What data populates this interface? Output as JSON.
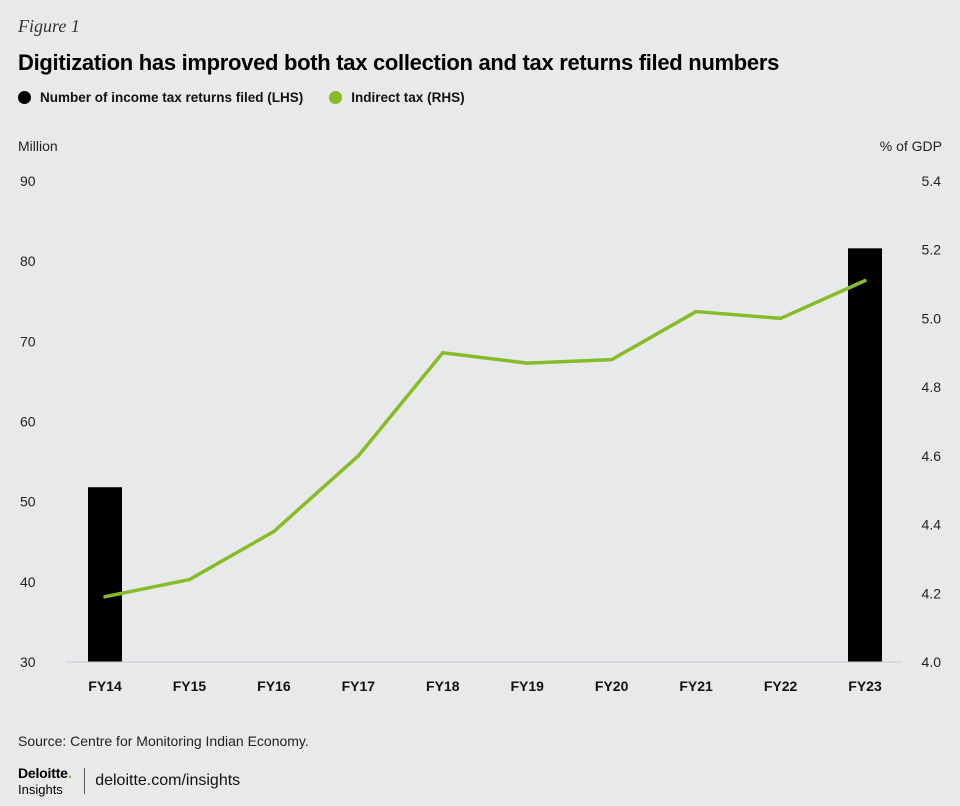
{
  "figure_label": "Figure 1",
  "title": "Digitization has improved both tax collection and tax returns filed numbers",
  "legend": [
    {
      "label": "Number of income tax returns filed (LHS)",
      "color": "#000000",
      "marker": "circle"
    },
    {
      "label": "Indirect tax (RHS)",
      "color": "#86bc25",
      "marker": "circle"
    }
  ],
  "axis_units": {
    "left": "Million",
    "right": "% of GDP"
  },
  "chart_data": {
    "type": "bar+line",
    "categories": [
      "FY14",
      "FY15",
      "FY16",
      "FY17",
      "FY18",
      "FY19",
      "FY20",
      "FY21",
      "FY22",
      "FY23"
    ],
    "series": [
      {
        "name": "Number of income tax returns filed (LHS)",
        "type": "bar",
        "axis": "left",
        "color": "#000000",
        "values": [
          51.8,
          null,
          null,
          null,
          null,
          null,
          null,
          null,
          null,
          81.6
        ]
      },
      {
        "name": "Indirect tax (RHS)",
        "type": "line",
        "axis": "right",
        "color": "#86bc25",
        "values": [
          4.19,
          4.24,
          4.38,
          4.6,
          4.9,
          4.87,
          4.88,
          5.02,
          5.0,
          5.11
        ]
      }
    ],
    "y_left": {
      "label": "Million",
      "min": 30,
      "max": 90,
      "ticks": [
        "30",
        "40",
        "50",
        "60",
        "70",
        "80",
        "90"
      ]
    },
    "y_right": {
      "label": "% of GDP",
      "min": 4.0,
      "max": 5.4,
      "ticks": [
        "4.0",
        "4.2",
        "4.4",
        "4.6",
        "4.8",
        "5.0",
        "5.2",
        "5.4"
      ]
    },
    "grid": false
  },
  "source": "Source: Centre for Monitoring Indian Economy.",
  "footer": {
    "brand": "Deloitte",
    "brand_dot": ".",
    "brand_sub": "Insights",
    "link": "deloitte.com/insights"
  }
}
